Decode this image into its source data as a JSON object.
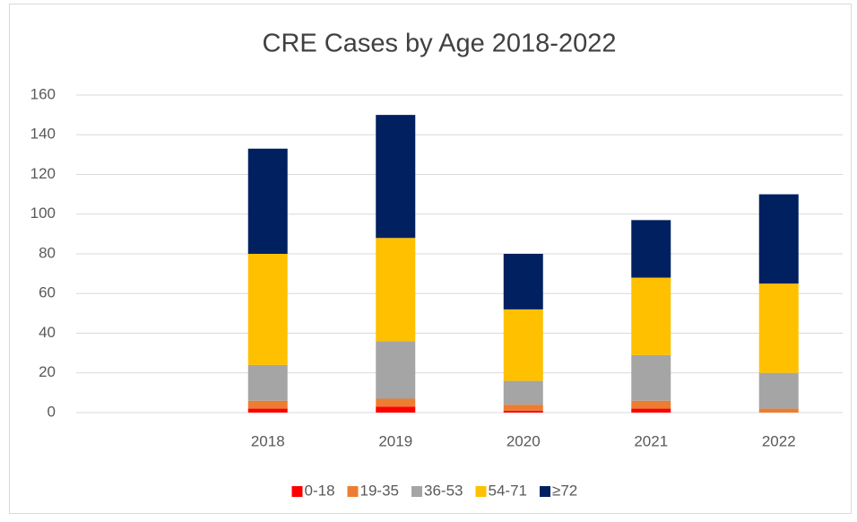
{
  "chart_data": {
    "type": "bar",
    "stacked": true,
    "title": "CRE Cases by Age 2018-2022",
    "categories": [
      null,
      "2018",
      "2019",
      "2020",
      "2021",
      "2022"
    ],
    "series": [
      {
        "name": "0-18",
        "color": "#ff0000",
        "values": [
          null,
          2,
          3,
          1,
          2,
          0
        ]
      },
      {
        "name": "19-35",
        "color": "#ed7d31",
        "values": [
          null,
          4,
          4,
          3,
          4,
          2
        ]
      },
      {
        "name": "36-53",
        "color": "#a5a5a5",
        "values": [
          null,
          18,
          29,
          12,
          23,
          18
        ]
      },
      {
        "name": "54-71",
        "color": "#ffc000",
        "values": [
          null,
          56,
          52,
          36,
          39,
          45
        ]
      },
      {
        "name": "≥72",
        "color": "#002060",
        "values": [
          null,
          53,
          62,
          28,
          29,
          45
        ]
      }
    ],
    "ylim": [
      0,
      160
    ],
    "yticks": [
      0,
      20,
      40,
      60,
      80,
      100,
      120,
      140,
      160
    ],
    "grid": true,
    "legend": "bottom"
  }
}
